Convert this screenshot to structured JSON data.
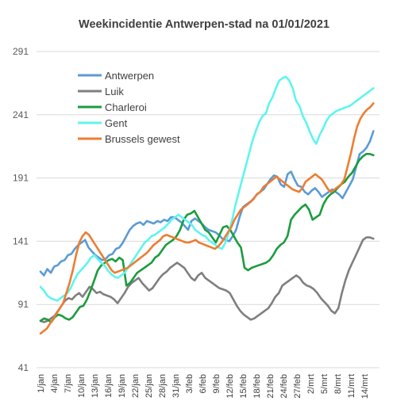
{
  "chart_data": {
    "type": "line",
    "title": "Weekincidentie  Antwerpen-stad na 01/01/2021",
    "xlabel": "",
    "ylabel": "",
    "ylim": [
      41,
      291
    ],
    "yticks": [
      41,
      91,
      141,
      191,
      241,
      291
    ],
    "grid": true,
    "legend_position": "top-left",
    "x_tick_labels": [
      "1/jan",
      "4/jan",
      "7/jan",
      "10/jan",
      "13/jan",
      "16/jan",
      "19/jan",
      "22/jan",
      "25/jan",
      "28/jan",
      "31/jan",
      "3/feb",
      "6/feb",
      "9/feb",
      "12/feb",
      "15/feb",
      "18/feb",
      "21/feb",
      "24/feb",
      "27/feb",
      "2/mrt",
      "5/mrt",
      "8/mrt",
      "11/mrt",
      "14/mrt"
    ],
    "x_start": "2021-01-01",
    "series": [
      {
        "name": "Antwerpen",
        "color": "#5b9bd5",
        "values": [
          117,
          114,
          119,
          116,
          121,
          122,
          125,
          126,
          130,
          131,
          135,
          138,
          140,
          142,
          136,
          133,
          130,
          128,
          126,
          127,
          130,
          131,
          135,
          136,
          140,
          145,
          150,
          153,
          155,
          156,
          154,
          157,
          156,
          155,
          157,
          156,
          158,
          157,
          160,
          160,
          158,
          156,
          153,
          150,
          157,
          159,
          157,
          155,
          152,
          150,
          149,
          148,
          146,
          143,
          142,
          141,
          145,
          150,
          160,
          168,
          170,
          172,
          174,
          178,
          180,
          182,
          186,
          190,
          193,
          192,
          186,
          184,
          194,
          196,
          190,
          185,
          184,
          180,
          178,
          181,
          183,
          180,
          176,
          178,
          180,
          182,
          180,
          178,
          175,
          180,
          185,
          190,
          200,
          210,
          212,
          215,
          220,
          228
        ]
      },
      {
        "name": "Luik",
        "color": "#7f7f7f",
        "values": [
          78,
          77,
          78,
          80,
          82,
          86,
          90,
          94,
          96,
          95,
          98,
          100,
          97,
          101,
          105,
          103,
          100,
          101,
          99,
          98,
          97,
          95,
          92,
          96,
          100,
          105,
          108,
          110,
          112,
          108,
          105,
          102,
          104,
          108,
          112,
          115,
          117,
          120,
          122,
          124,
          122,
          120,
          116,
          112,
          110,
          114,
          116,
          112,
          110,
          108,
          106,
          104,
          103,
          102,
          100,
          95,
          90,
          86,
          83,
          81,
          79,
          80,
          82,
          84,
          86,
          88,
          92,
          97,
          100,
          106,
          108,
          110,
          112,
          114,
          112,
          108,
          106,
          105,
          103,
          100,
          96,
          93,
          90,
          86,
          84,
          88,
          100,
          110,
          118,
          124,
          130,
          136,
          142,
          144,
          144,
          143
        ]
      },
      {
        "name": "Charleroi",
        "color": "#1a9c3e",
        "values": [
          78,
          80,
          79,
          77,
          81,
          83,
          82,
          80,
          79,
          81,
          85,
          89,
          90,
          95,
          102,
          110,
          118,
          122,
          124,
          126,
          127,
          125,
          128,
          126,
          106,
          108,
          112,
          116,
          118,
          120,
          122,
          124,
          128,
          130,
          134,
          138,
          140,
          142,
          145,
          150,
          158,
          162,
          163,
          165,
          160,
          155,
          150,
          148,
          144,
          140,
          146,
          152,
          153,
          150,
          145,
          140,
          136,
          120,
          118,
          120,
          121,
          122,
          123,
          124,
          126,
          130,
          135,
          138,
          140,
          145,
          158,
          162,
          165,
          168,
          170,
          166,
          158,
          160,
          162,
          170,
          175,
          178,
          180,
          183,
          186,
          188,
          192,
          195,
          200,
          205,
          208,
          210,
          210,
          209
        ]
      },
      {
        "name": "Gent",
        "color": "#5ef5ee",
        "values": [
          105,
          102,
          98,
          96,
          95,
          94,
          96,
          98,
          100,
          104,
          110,
          115,
          118,
          121,
          124,
          128,
          130,
          127,
          124,
          122,
          118,
          115,
          113,
          112,
          114,
          116,
          120,
          124,
          128,
          132,
          136,
          140,
          142,
          145,
          146,
          148,
          150,
          152,
          155,
          158,
          160,
          162,
          160,
          158,
          156,
          154,
          150,
          148,
          146,
          145,
          142,
          140,
          138,
          136,
          135,
          140,
          148,
          158,
          170,
          180,
          190,
          200,
          210,
          220,
          228,
          235,
          240,
          242,
          250,
          255,
          262,
          268,
          270,
          271,
          268,
          262,
          252,
          248,
          240,
          235,
          228,
          222,
          218,
          225,
          230,
          236,
          240,
          242,
          244,
          245,
          246,
          247,
          248,
          250,
          252,
          254,
          256,
          258,
          260,
          262
        ]
      },
      {
        "name": "Brussels gewest",
        "color": "#ed7d31",
        "values": [
          68,
          70,
          72,
          76,
          80,
          84,
          88,
          92,
          100,
          108,
          118,
          130,
          140,
          145,
          148,
          146,
          142,
          138,
          134,
          130,
          126,
          122,
          118,
          116,
          117,
          118,
          119,
          120,
          122,
          124,
          126,
          128,
          130,
          132,
          135,
          138,
          140,
          142,
          145,
          146,
          145,
          144,
          143,
          142,
          141,
          140,
          140,
          141,
          142,
          140,
          139,
          138,
          137,
          136,
          135,
          137,
          140,
          144,
          148,
          152,
          158,
          162,
          166,
          168,
          170,
          172,
          175,
          178,
          180,
          184,
          186,
          188,
          190,
          192,
          190,
          188,
          186,
          184,
          182,
          181,
          180,
          183,
          188,
          190,
          192,
          194,
          192,
          190,
          186,
          182,
          180,
          182,
          184,
          186,
          190,
          200,
          210,
          222,
          232,
          238,
          242,
          245,
          247,
          250
        ]
      }
    ]
  }
}
